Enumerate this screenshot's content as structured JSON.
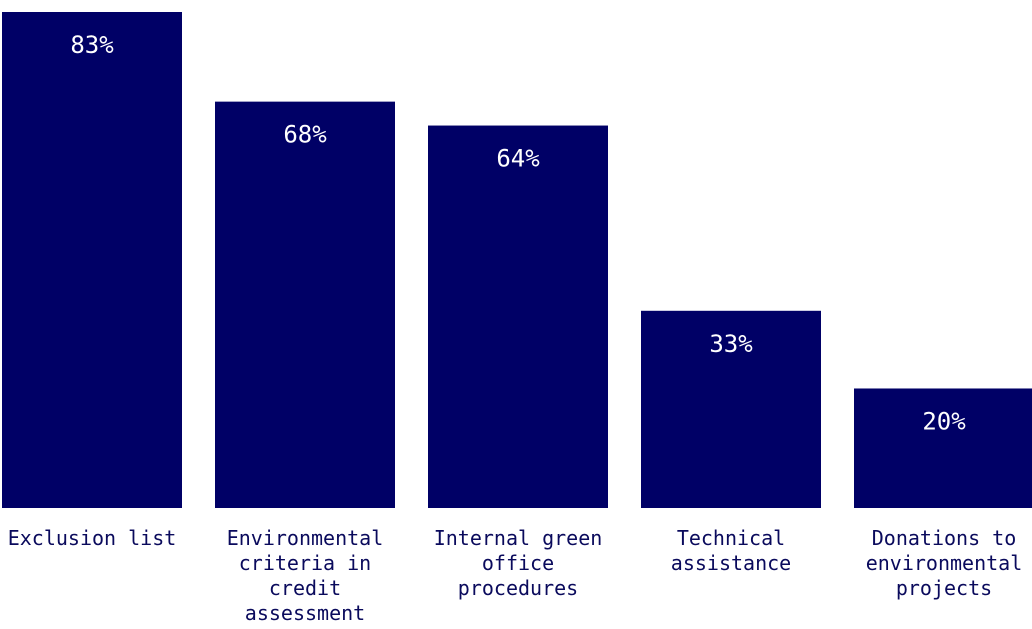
{
  "chart_data": {
    "type": "bar",
    "categories": [
      [
        "Exclusion list"
      ],
      [
        "Environmental",
        "criteria in",
        "credit",
        "assessment"
      ],
      [
        "Internal green",
        "office",
        "procedures"
      ],
      [
        "Technical",
        "assistance"
      ],
      [
        "Donations to",
        "environmental",
        "projects"
      ]
    ],
    "values": [
      83,
      68,
      64,
      33,
      20
    ],
    "value_labels": [
      "83%",
      "68%",
      "64%",
      "33%",
      "20%"
    ],
    "ylim": [
      0,
      83
    ],
    "grid": false,
    "bar_color": "#000066",
    "label_color": "#ffffff",
    "category_label_color": "#0a0a5c",
    "title": "",
    "xlabel": "",
    "ylabel": ""
  }
}
